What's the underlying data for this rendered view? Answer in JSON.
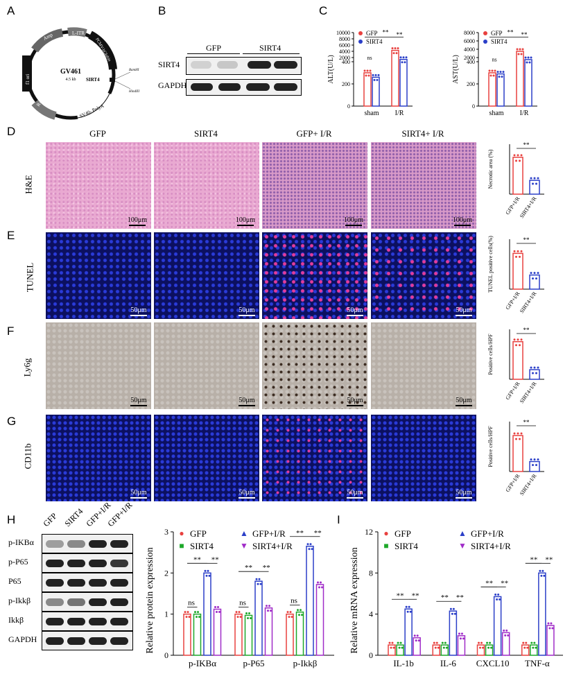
{
  "panels": {
    "A": "A",
    "B": "B",
    "C": "C",
    "D": "D",
    "E": "E",
    "F": "F",
    "G": "G",
    "H": "H",
    "I": "I"
  },
  "plasmid": {
    "name": "GV461",
    "size": "4.5 kb",
    "segments": [
      "Amp",
      "L-ITR",
      "PCMV-bGlobin",
      "SV40- PolyA",
      "R-ITR",
      "f1 ori"
    ],
    "insert": "SIRT4",
    "sites": [
      "BamHI",
      "HindIII"
    ]
  },
  "blotB": {
    "groups": [
      "GFP",
      "SIRT4"
    ],
    "rows": [
      "SIRT4",
      "GAPDH"
    ]
  },
  "panelC": {
    "legend": [
      "GFP",
      "SIRT4"
    ],
    "colors": {
      "GFP": "#e8413f",
      "SIRT4": "#2b3fc8"
    }
  },
  "chart_data": [
    {
      "type": "bar",
      "panel": "C-left",
      "ylabel": "ALT(U/L)",
      "categories": [
        "sham",
        "I/R"
      ],
      "yticks": [
        "0",
        "200",
        "400",
        "2000",
        "4000",
        "6000",
        "8000",
        "10000"
      ],
      "series": [
        {
          "name": "GFP",
          "values": [
            300,
            4300
          ]
        },
        {
          "name": "SIRT4",
          "values": [
            260,
            1400
          ]
        }
      ],
      "annotations": [
        "ns",
        "**",
        "**"
      ]
    },
    {
      "type": "bar",
      "panel": "C-right",
      "ylabel": "AST(U/L)",
      "categories": [
        "sham",
        "I/R"
      ],
      "yticks": [
        "0",
        "200",
        "400",
        "2000",
        "4000",
        "6000",
        "8000"
      ],
      "series": [
        {
          "name": "GFP",
          "values": [
            300,
            3500
          ]
        },
        {
          "name": "SIRT4",
          "values": [
            290,
            1500
          ]
        }
      ],
      "annotations": [
        "ns",
        "**",
        "**"
      ]
    },
    {
      "type": "bar",
      "panel": "D",
      "ylabel": "Necrotic area (%)",
      "categories": [
        "GFP+I/R",
        "SIRT4+I/R"
      ],
      "values": [
        48,
        18
      ],
      "annotations": [
        "**"
      ]
    },
    {
      "type": "bar",
      "panel": "E",
      "ylabel": "TUNEL positive cells(%)",
      "categories": [
        "GFP+I/R",
        "SIRT4+I/R"
      ],
      "values": [
        43,
        17
      ],
      "annotations": [
        "**"
      ]
    },
    {
      "type": "bar",
      "panel": "F",
      "ylabel": "Positive cells/HPF",
      "categories": [
        "GFP+I/R",
        "SIRT4+I/R"
      ],
      "values": [
        98,
        25
      ],
      "annotations": [
        "**"
      ]
    },
    {
      "type": "bar",
      "panel": "G",
      "ylabel": "Positive cells/HPF",
      "categories": [
        "GFP+I/R",
        "SIRT4+I/R"
      ],
      "values": [
        90,
        25
      ],
      "annotations": [
        "**"
      ]
    },
    {
      "type": "bar",
      "panel": "H",
      "ylabel": "Relative protein expression",
      "categories": [
        "p-IKBα",
        "p-P65",
        "p-Ikkβ"
      ],
      "yticks": [
        "0",
        "1",
        "2",
        "3"
      ],
      "ylim": [
        0,
        3
      ],
      "series": [
        {
          "name": "GFP",
          "values": [
            1.0,
            1.0,
            1.0
          ]
        },
        {
          "name": "SIRT4",
          "values": [
            1.0,
            0.97,
            1.05
          ]
        },
        {
          "name": "GFP+I/R",
          "values": [
            2.0,
            1.8,
            2.65
          ]
        },
        {
          "name": "SIRT4+I/R",
          "values": [
            1.12,
            1.15,
            1.72
          ]
        }
      ],
      "annotations": [
        "ns",
        "**",
        "**",
        "ns",
        "**",
        "**",
        "ns",
        "**",
        "**"
      ]
    },
    {
      "type": "bar",
      "panel": "I",
      "ylabel": "Relative mRNA expression",
      "categories": [
        "IL-1b",
        "IL-6",
        "CXCL10",
        "TNF-α"
      ],
      "yticks": [
        "0",
        "4",
        "8",
        "12"
      ],
      "ylim": [
        0,
        12
      ],
      "series": [
        {
          "name": "GFP",
          "values": [
            1.0,
            1.0,
            1.0,
            1.0
          ]
        },
        {
          "name": "SIRT4",
          "values": [
            1.0,
            1.0,
            1.0,
            1.0
          ]
        },
        {
          "name": "GFP+I/R",
          "values": [
            4.5,
            4.3,
            5.7,
            8.0
          ]
        },
        {
          "name": "SIRT4+I/R",
          "values": [
            1.7,
            1.9,
            2.2,
            2.9
          ]
        }
      ],
      "annotations": [
        "**",
        "**",
        "**",
        "**",
        "**",
        "**",
        "**",
        "**"
      ]
    }
  ],
  "panelD_cols": [
    "GFP",
    "SIRT4",
    "GFP+ I/R",
    "SIRT4+ I/R"
  ],
  "rows": {
    "D": "H&E",
    "E": "TUNEL",
    "F": "Ly6g",
    "G": "CD11b"
  },
  "scales": {
    "D": "100μm",
    "E": "50μm",
    "F": "50μm",
    "G": "50μm"
  },
  "blotH": {
    "lanes": [
      "GFP",
      "SIRT4",
      "GFP+I/R",
      "GFP+I/R"
    ],
    "rows": [
      "p-IKBα",
      "p-P65",
      "P65",
      "p-Ikkβ",
      "Ikkβ",
      "GAPDH"
    ]
  },
  "legendHI": [
    {
      "name": "GFP",
      "color": "#e8413f",
      "marker": "●"
    },
    {
      "name": "GFP+I/R",
      "color": "#2b3fc8",
      "marker": "▲"
    },
    {
      "name": "SIRT4",
      "color": "#1ea82a",
      "marker": "■"
    },
    {
      "name": "SIRT4+I/R",
      "color": "#a02cc8",
      "marker": "▼"
    }
  ]
}
